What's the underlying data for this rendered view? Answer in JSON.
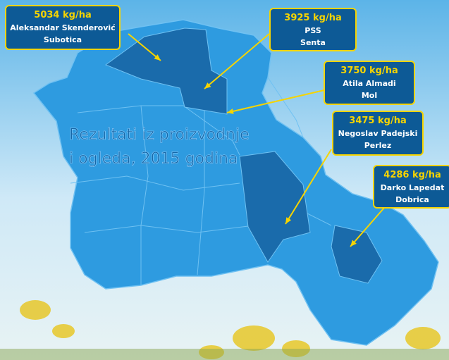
{
  "title_lines": [
    "Rezultati iz proizvodnje",
    "i ogleda, 2015 godina"
  ],
  "callouts": [
    {
      "yield": "5034 kg/ha",
      "name": "Aleksandar Skenderović",
      "place": "Subotica"
    },
    {
      "yield": "3925 kg/ha",
      "name": "PSS",
      "place": "Senta"
    },
    {
      "yield": "3750 kg/ha",
      "name": "Atila Almadi",
      "place": "Mol"
    },
    {
      "yield": "3475 kg/ha",
      "name": "Negoslav Padejski",
      "place": "Perlez"
    },
    {
      "yield": "4286 kg/ha",
      "name": "Darko Lapedat",
      "place": "Dobrica"
    }
  ]
}
